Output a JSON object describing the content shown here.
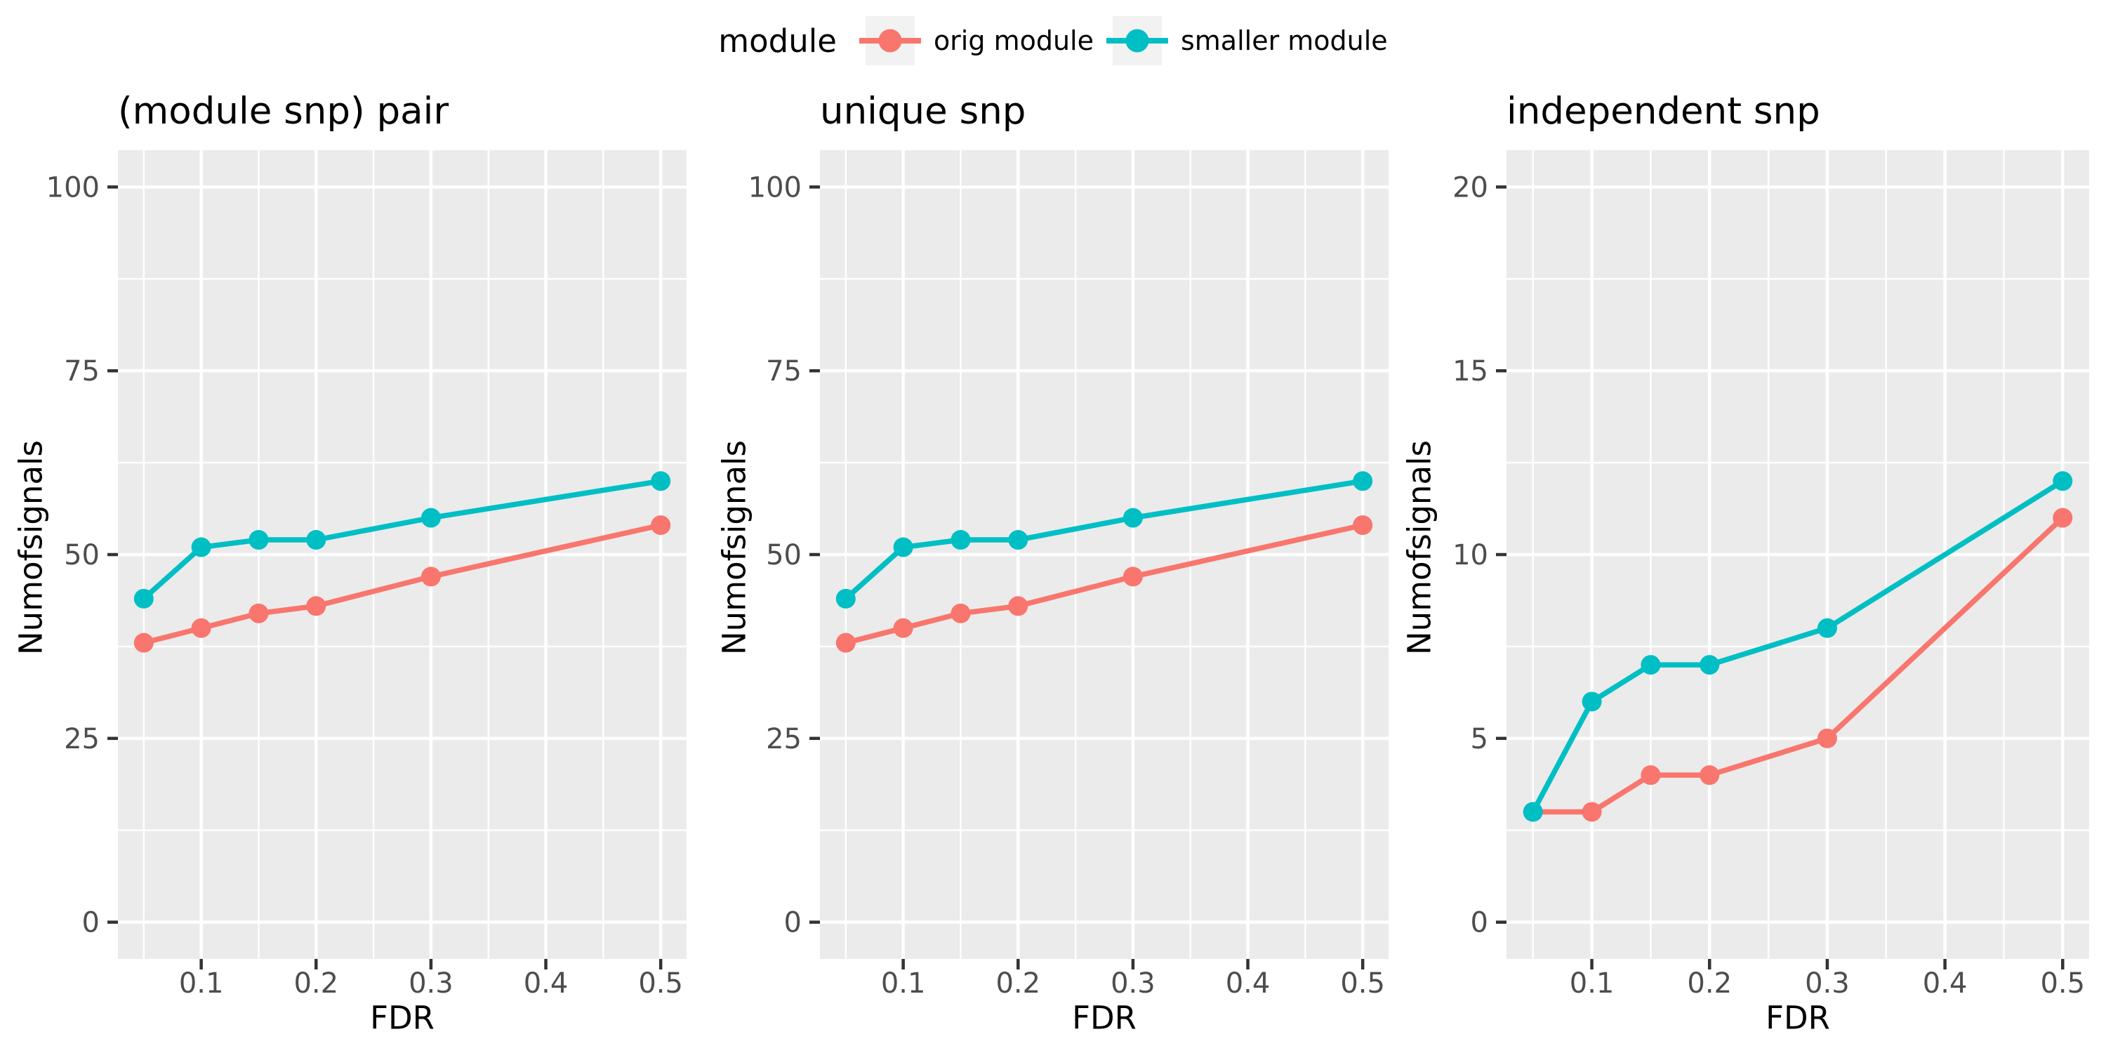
{
  "legend": {
    "title": "module",
    "items": [
      {
        "label": "orig module",
        "color": "#F8766D"
      },
      {
        "label": "smaller module",
        "color": "#00BFC4"
      }
    ]
  },
  "colors": {
    "orig_module": "#F8766D",
    "smaller_module": "#00BFC4",
    "panel_bg": "#EBEBEB",
    "gridline": "#FFFFFF",
    "axis_text": "#4D4D4D",
    "tick_mark": "#333333",
    "legend_key_bg": "#F2F2F2",
    "title_text": "#000000"
  },
  "chart_data": [
    {
      "type": "line",
      "title": "(module snp) pair",
      "xlabel": "FDR",
      "ylabel": "Numofsignals",
      "x": [
        0.05,
        0.1,
        0.15,
        0.2,
        0.3,
        0.5
      ],
      "series": [
        {
          "name": "orig module",
          "color": "#F8766D",
          "values": [
            38,
            40,
            42,
            43,
            47,
            54
          ]
        },
        {
          "name": "smaller module",
          "color": "#00BFC4",
          "values": [
            44,
            51,
            52,
            52,
            55,
            60
          ]
        }
      ],
      "xlim": [
        0.05,
        0.5
      ],
      "ylim": [
        0,
        100
      ],
      "xticks": [
        0.1,
        0.2,
        0.3,
        0.4,
        0.5
      ],
      "yticks": [
        0,
        25,
        50,
        75,
        100
      ],
      "grid": true,
      "legend_position": "top"
    },
    {
      "type": "line",
      "title": "unique snp",
      "xlabel": "FDR",
      "ylabel": "Numofsignals",
      "x": [
        0.05,
        0.1,
        0.15,
        0.2,
        0.3,
        0.5
      ],
      "series": [
        {
          "name": "orig module",
          "color": "#F8766D",
          "values": [
            38,
            40,
            42,
            43,
            47,
            54
          ]
        },
        {
          "name": "smaller module",
          "color": "#00BFC4",
          "values": [
            44,
            51,
            52,
            52,
            55,
            60
          ]
        }
      ],
      "xlim": [
        0.05,
        0.5
      ],
      "ylim": [
        0,
        100
      ],
      "xticks": [
        0.1,
        0.2,
        0.3,
        0.4,
        0.5
      ],
      "yticks": [
        0,
        25,
        50,
        75,
        100
      ],
      "grid": true,
      "legend_position": "top"
    },
    {
      "type": "line",
      "title": "independent snp",
      "xlabel": "FDR",
      "ylabel": "Numofsignals",
      "x": [
        0.05,
        0.1,
        0.15,
        0.2,
        0.3,
        0.5
      ],
      "series": [
        {
          "name": "orig module",
          "color": "#F8766D",
          "values": [
            3,
            3,
            4,
            4,
            5,
            11
          ]
        },
        {
          "name": "smaller module",
          "color": "#00BFC4",
          "values": [
            3,
            6,
            7,
            7,
            8,
            12
          ]
        }
      ],
      "xlim": [
        0.05,
        0.5
      ],
      "ylim": [
        0,
        20
      ],
      "xticks": [
        0.1,
        0.2,
        0.3,
        0.4,
        0.5
      ],
      "yticks": [
        0,
        5,
        10,
        15,
        20
      ],
      "grid": true,
      "legend_position": "top"
    }
  ]
}
